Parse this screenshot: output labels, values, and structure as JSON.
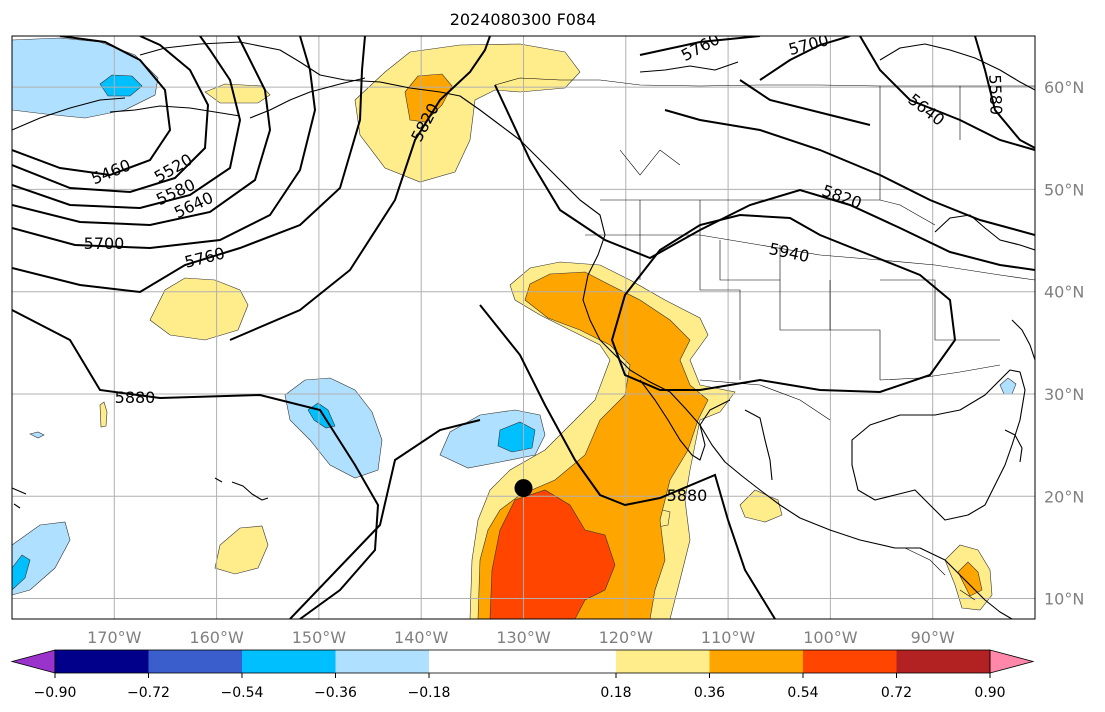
{
  "title": "2024080300 F084",
  "map": {
    "lon_range": [
      -180,
      -80
    ],
    "lat_range": [
      8,
      65
    ],
    "lon_ticks": [
      {
        "lon": -170,
        "label": "170°W"
      },
      {
        "lon": -160,
        "label": "160°W"
      },
      {
        "lon": -150,
        "label": "150°W"
      },
      {
        "lon": -140,
        "label": "140°W"
      },
      {
        "lon": -130,
        "label": "130°W"
      },
      {
        "lon": -120,
        "label": "120°W"
      },
      {
        "lon": -110,
        "label": "110°W"
      },
      {
        "lon": -100,
        "label": "100°W"
      },
      {
        "lon": -90,
        "label": "90°W"
      }
    ],
    "lat_ticks": [
      {
        "lat": 10,
        "label": "10°N"
      },
      {
        "lat": 20,
        "label": "20°N"
      },
      {
        "lat": 30,
        "label": "30°N"
      },
      {
        "lat": 40,
        "label": "40°N"
      },
      {
        "lat": 50,
        "label": "50°N"
      },
      {
        "lat": 60,
        "label": "60°N"
      }
    ],
    "marker": {
      "lon": -130,
      "lat": 20.8,
      "color": "#000000"
    }
  },
  "contour_labels": [
    "5460",
    "5520",
    "5580",
    "5640",
    "5700",
    "5760",
    "5820",
    "5880",
    "5940",
    "5880",
    "5820",
    "5640",
    "5580",
    "5700",
    "5760",
    "5820"
  ],
  "colorbar": {
    "min": -1.08,
    "max": 1.08,
    "colors": [
      "#9933cc",
      "#00008b",
      "#3a5fcd",
      "#00bfff",
      "#b0e0ff",
      "#ffffff",
      "#ffec8b",
      "#ffa500",
      "#ff4500",
      "#b22222",
      "#ff88aa"
    ],
    "bounds": [
      -0.9,
      -0.72,
      -0.54,
      -0.36,
      -0.18,
      0.18,
      0.36,
      0.54,
      0.72,
      0.9
    ],
    "tick_labels": [
      "−0.90",
      "−0.72",
      "−0.54",
      "−0.36",
      "−0.18",
      "0.18",
      "0.36",
      "0.54",
      "0.72",
      "0.90"
    ]
  }
}
